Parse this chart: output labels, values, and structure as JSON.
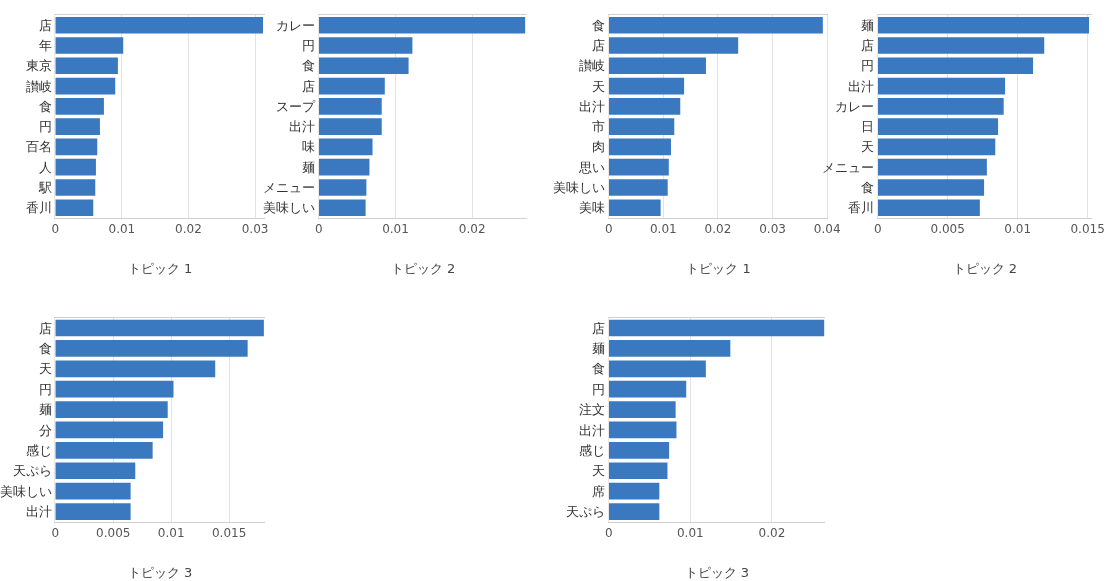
{
  "chart_data": [
    {
      "type": "bar",
      "orientation": "horizontal",
      "xlabel": "トピック 1",
      "categories": [
        "店",
        "年",
        "東京",
        "讃岐",
        "食",
        "円",
        "百名",
        "人",
        "駅",
        "香川"
      ],
      "values": [
        0.0312,
        0.0102,
        0.0094,
        0.009,
        0.0073,
        0.0067,
        0.0063,
        0.0061,
        0.006,
        0.0057
      ],
      "color": "#3a78bf",
      "xlim": [
        0,
        0.0315
      ],
      "xticks": [
        0,
        0.01,
        0.02,
        0.03
      ],
      "grid": "x"
    },
    {
      "type": "bar",
      "orientation": "horizontal",
      "xlabel": "トピック 2",
      "categories": [
        "カレー",
        "円",
        "食",
        "店",
        "スープ",
        "出汁",
        "味",
        "麺",
        "メニュー",
        "美味しい"
      ],
      "values": [
        0.0269,
        0.0122,
        0.0117,
        0.0086,
        0.0082,
        0.0082,
        0.007,
        0.0066,
        0.0062,
        0.0061
      ],
      "color": "#3a78bf",
      "xlim": [
        0,
        0.0272
      ],
      "xticks": [
        0,
        0.01,
        0.02
      ],
      "grid": "x"
    },
    {
      "type": "bar",
      "orientation": "horizontal",
      "xlabel": "トピック 1",
      "categories": [
        "食",
        "店",
        "讃岐",
        "天",
        "出汁",
        "市",
        "肉",
        "思い",
        "美味しい",
        "美味"
      ],
      "values": [
        0.0392,
        0.0237,
        0.0178,
        0.0138,
        0.0131,
        0.012,
        0.0114,
        0.011,
        0.0108,
        0.0095
      ],
      "color": "#3a78bf",
      "xlim": [
        0,
        0.0402
      ],
      "xticks": [
        0,
        0.01,
        0.02,
        0.03,
        0.04
      ],
      "grid": "x"
    },
    {
      "type": "bar",
      "orientation": "horizontal",
      "xlabel": "トピック 2",
      "categories": [
        "麺",
        "店",
        "円",
        "出汁",
        "カレー",
        "日",
        "天",
        "メニュー",
        "食",
        "香川"
      ],
      "values": [
        0.0151,
        0.0119,
        0.0111,
        0.0091,
        0.009,
        0.0086,
        0.0084,
        0.0078,
        0.0076,
        0.0073
      ],
      "color": "#3a78bf",
      "xlim": [
        0,
        0.0153
      ],
      "xticks": [
        0,
        0.005,
        0.01,
        0.015
      ],
      "grid": "x"
    },
    {
      "type": "bar",
      "orientation": "horizontal",
      "xlabel": "トピック 3",
      "categories": [
        "店",
        "食",
        "天",
        "円",
        "麺",
        "分",
        "感じ",
        "天ぷら",
        "美味しい",
        "出汁"
      ],
      "values": [
        0.018,
        0.0166,
        0.0138,
        0.0102,
        0.0097,
        0.0093,
        0.0084,
        0.0069,
        0.0065,
        0.0065
      ],
      "color": "#3a78bf",
      "xlim": [
        0,
        0.0181
      ],
      "xticks": [
        0,
        0.005,
        0.01,
        0.015
      ],
      "grid": "x"
    },
    {
      "type": "bar",
      "orientation": "horizontal",
      "xlabel": "トピック 3",
      "categories": [
        "店",
        "麺",
        "食",
        "円",
        "注文",
        "出汁",
        "感じ",
        "天",
        "席",
        "天ぷら"
      ],
      "values": [
        0.0264,
        0.0149,
        0.0119,
        0.0095,
        0.0082,
        0.0083,
        0.0074,
        0.0072,
        0.0062,
        0.0062
      ],
      "color": "#3a78bf",
      "xlim": [
        0,
        0.0265
      ],
      "xticks": [
        0,
        0.01,
        0.02
      ],
      "grid": "x"
    }
  ]
}
